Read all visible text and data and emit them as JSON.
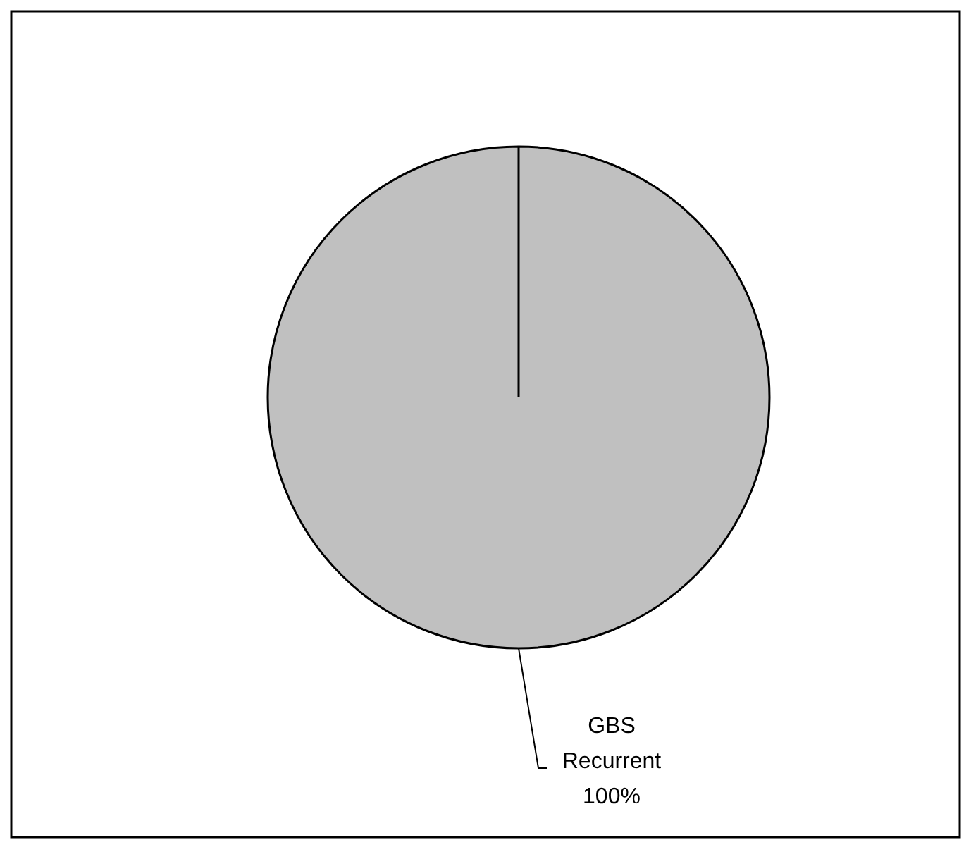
{
  "chart_data": {
    "type": "pie",
    "categories": [
      "GBS Recurrent"
    ],
    "values": [
      100
    ],
    "colors": [
      "#c0c0c0"
    ],
    "value_labels": [
      "100%"
    ]
  }
}
